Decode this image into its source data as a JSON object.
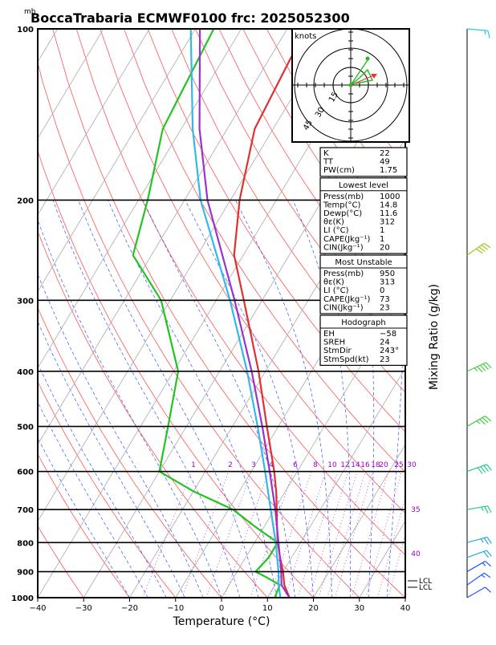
{
  "chart_data": {
    "type": "line",
    "title": "BoccaTrabaria ECMWF0100 frc: 2025052300",
    "pressure_unit": "mb",
    "xlabel": "Temperature (°C)",
    "right_label": "Mixing Ratio (g/kg)",
    "xlim": [
      -40,
      40
    ],
    "ylim": [
      1000,
      100
    ],
    "y_scale": "log",
    "x_ticks": [
      "−40",
      "−30",
      "−20",
      "−10",
      "0",
      "10",
      "20",
      "30",
      "40"
    ],
    "p_ticks": [
      "1000",
      "900",
      "800",
      "700",
      "600",
      "500",
      "400",
      "300",
      "200",
      "100"
    ],
    "mixing_ratio_labels": [
      "1",
      "2",
      "3",
      "4",
      "6",
      "8",
      "10",
      "12",
      "14",
      "16",
      "18",
      "20",
      "25",
      "30",
      "35",
      "40"
    ],
    "lcl_labels": [
      "LCL",
      "LCL"
    ],
    "hodograph": {
      "unit": "knots",
      "rings": [
        "15",
        "30",
        "45"
      ]
    },
    "series": [
      {
        "name": "Temperature",
        "color": "#e03030",
        "points": [
          [
            1000,
            14.8
          ],
          [
            950,
            12
          ],
          [
            900,
            10
          ],
          [
            850,
            7.5
          ],
          [
            800,
            5
          ],
          [
            750,
            2.8
          ],
          [
            700,
            0.5
          ],
          [
            650,
            -2
          ],
          [
            600,
            -5
          ],
          [
            500,
            -12.5
          ],
          [
            400,
            -21.5
          ],
          [
            300,
            -34
          ],
          [
            250,
            -42
          ],
          [
            200,
            -48
          ],
          [
            150,
            -54
          ],
          [
            100,
            -56
          ]
        ]
      },
      {
        "name": "Dewpoint",
        "color": "#22c422",
        "points": [
          [
            1000,
            11.6
          ],
          [
            950,
            11
          ],
          [
            920,
            7
          ],
          [
            900,
            4
          ],
          [
            850,
            5
          ],
          [
            800,
            5
          ],
          [
            750,
            -2
          ],
          [
            700,
            -9
          ],
          [
            650,
            -20
          ],
          [
            600,
            -30
          ],
          [
            500,
            -34
          ],
          [
            400,
            -39
          ],
          [
            300,
            -52
          ],
          [
            250,
            -64
          ],
          [
            200,
            -68
          ],
          [
            150,
            -74
          ],
          [
            100,
            -76
          ]
        ]
      },
      {
        "name": "Parcel",
        "color": "#9933cc",
        "points": [
          [
            1000,
            14.8
          ],
          [
            950,
            11.4
          ],
          [
            900,
            9.6
          ],
          [
            800,
            5.2
          ],
          [
            700,
            0.2
          ],
          [
            600,
            -6
          ],
          [
            500,
            -13.5
          ],
          [
            400,
            -23
          ],
          [
            300,
            -36
          ],
          [
            200,
            -55
          ],
          [
            150,
            -66
          ],
          [
            100,
            -79
          ]
        ]
      },
      {
        "name": "Environment lapse",
        "color": "#33b8e8",
        "points": [
          [
            1000,
            12.8
          ],
          [
            950,
            10.8
          ],
          [
            900,
            9
          ],
          [
            800,
            4.6
          ],
          [
            700,
            -0.8
          ],
          [
            600,
            -7
          ],
          [
            500,
            -14.5
          ],
          [
            400,
            -24
          ],
          [
            300,
            -37
          ],
          [
            200,
            -56.5
          ],
          [
            150,
            -67.5
          ],
          [
            100,
            -81
          ]
        ]
      }
    ],
    "wind_barbs": [
      {
        "p": 1000,
        "dir": 240,
        "kt": 10
      },
      {
        "p": 950,
        "dir": 235,
        "kt": 15
      },
      {
        "p": 900,
        "dir": 240,
        "kt": 15
      },
      {
        "p": 850,
        "dir": 250,
        "kt": 20
      },
      {
        "p": 800,
        "dir": 255,
        "kt": 25
      },
      {
        "p": 700,
        "dir": 260,
        "kt": 25
      },
      {
        "p": 600,
        "dir": 250,
        "kt": 40
      },
      {
        "p": 500,
        "dir": 240,
        "kt": 35
      },
      {
        "p": 400,
        "dir": 245,
        "kt": 45
      },
      {
        "p": 250,
        "dir": 235,
        "kt": 40
      },
      {
        "p": 100,
        "dir": 275,
        "kt": 15
      }
    ]
  },
  "indices": {
    "rows": [
      {
        "label": "K",
        "value": "22"
      },
      {
        "label": "TT",
        "value": "49"
      },
      {
        "label": "PW(cm)",
        "value": "1.75"
      }
    ]
  },
  "lowest_level": {
    "header": "Lowest level",
    "rows": [
      {
        "label": "Press(mb)",
        "value": "1000"
      },
      {
        "label": "Temp(°C)",
        "value": "14.8"
      },
      {
        "label": "Dewp(°C)",
        "value": "11.6"
      },
      {
        "label": "θε(K)",
        "value": "312"
      },
      {
        "label": "LI (°C)",
        "value": "1"
      },
      {
        "label": "CAPE(Jkg⁻¹)",
        "value": "1"
      },
      {
        "label": "CIN(Jkg⁻¹)",
        "value": "20"
      }
    ]
  },
  "most_unstable": {
    "header": "Most Unstable",
    "rows": [
      {
        "label": "Press(mb)",
        "value": "950"
      },
      {
        "label": "θε(K)",
        "value": "313"
      },
      {
        "label": "LI (°C)",
        "value": "0"
      },
      {
        "label": "CAPE(Jkg⁻¹)",
        "value": "73"
      },
      {
        "label": "CIN(Jkg⁻¹)",
        "value": "23"
      }
    ]
  },
  "hodograph_table": {
    "header": "Hodograph",
    "rows": [
      {
        "label": "EH",
        "value": "−58"
      },
      {
        "label": "SREH",
        "value": "24"
      },
      {
        "label": "StmDir",
        "value": "243°"
      },
      {
        "label": "StmSpd(kt)",
        "value": "23"
      }
    ]
  }
}
